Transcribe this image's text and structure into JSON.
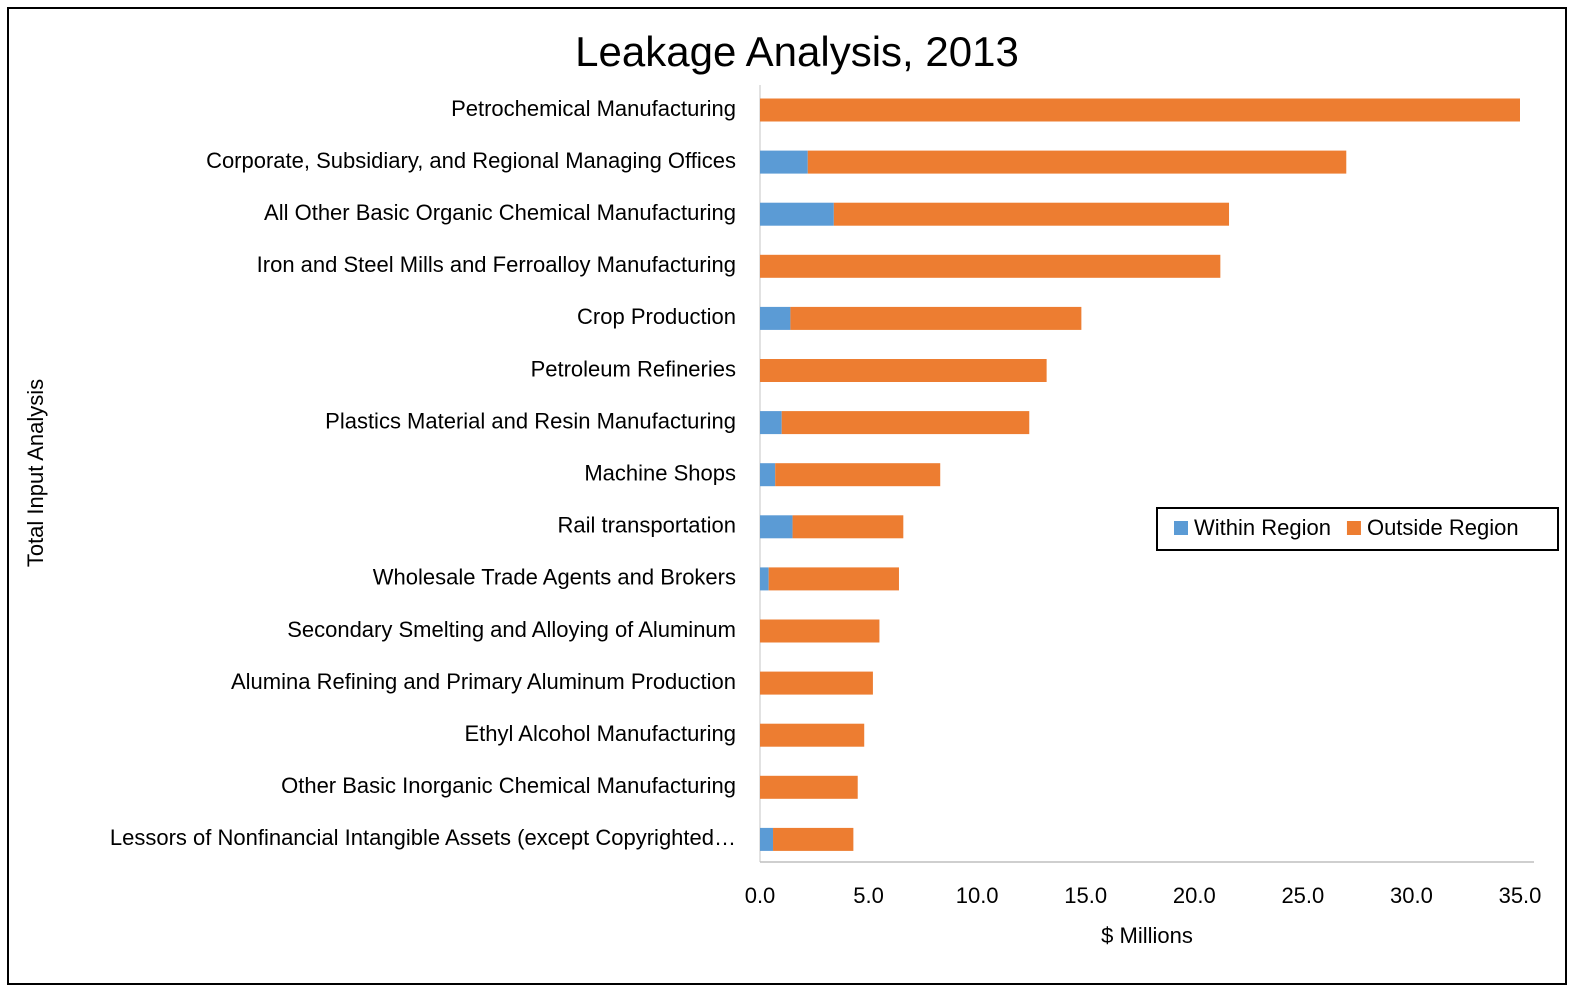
{
  "chart_data": {
    "type": "stacked_bar_horizontal",
    "title": "Leakage Analysis, 2013",
    "x_label": "$ Millions",
    "y_label": "Total Input Analysis",
    "categories": [
      "Petrochemical Manufacturing",
      "Corporate, Subsidiary, and Regional Managing Offices",
      "All Other Basic Organic Chemical Manufacturing",
      "Iron and Steel Mills and Ferroalloy Manufacturing",
      "Crop Production",
      "Petroleum Refineries",
      "Plastics Material and Resin Manufacturing",
      "Machine Shops",
      "Rail transportation",
      "Wholesale Trade Agents and Brokers",
      "Secondary Smelting and Alloying of Aluminum",
      "Alumina Refining and Primary Aluminum Production",
      "Ethyl Alcohol Manufacturing",
      "Other Basic Inorganic Chemical Manufacturing",
      "Lessors of Nonfinancial Intangible Assets (except Copyrighted…"
    ],
    "series": [
      {
        "name": "Within Region",
        "color": "#5b9bd5",
        "values": [
          0,
          2.2,
          3.4,
          0,
          1.4,
          0,
          1.0,
          0.7,
          1.5,
          0.4,
          0,
          0,
          0,
          0,
          0.6
        ]
      },
      {
        "name": "Outside Region",
        "color": "#ed7d31",
        "values": [
          35.0,
          24.8,
          18.2,
          21.2,
          13.4,
          13.2,
          11.4,
          7.6,
          5.1,
          6.0,
          5.5,
          5.2,
          4.8,
          4.5,
          3.7
        ]
      }
    ],
    "xlim": [
      0,
      35
    ],
    "xticks": [
      {
        "value": 0,
        "label": "0.0"
      },
      {
        "value": 5,
        "label": "5.0"
      },
      {
        "value": 10,
        "label": "10.0"
      },
      {
        "value": 15,
        "label": "15.0"
      },
      {
        "value": 20,
        "label": "20.0"
      },
      {
        "value": 25,
        "label": "25.0"
      },
      {
        "value": 30,
        "label": "30.0"
      },
      {
        "value": 35,
        "label": "35.0"
      }
    ],
    "grid": false,
    "legend": "right"
  }
}
